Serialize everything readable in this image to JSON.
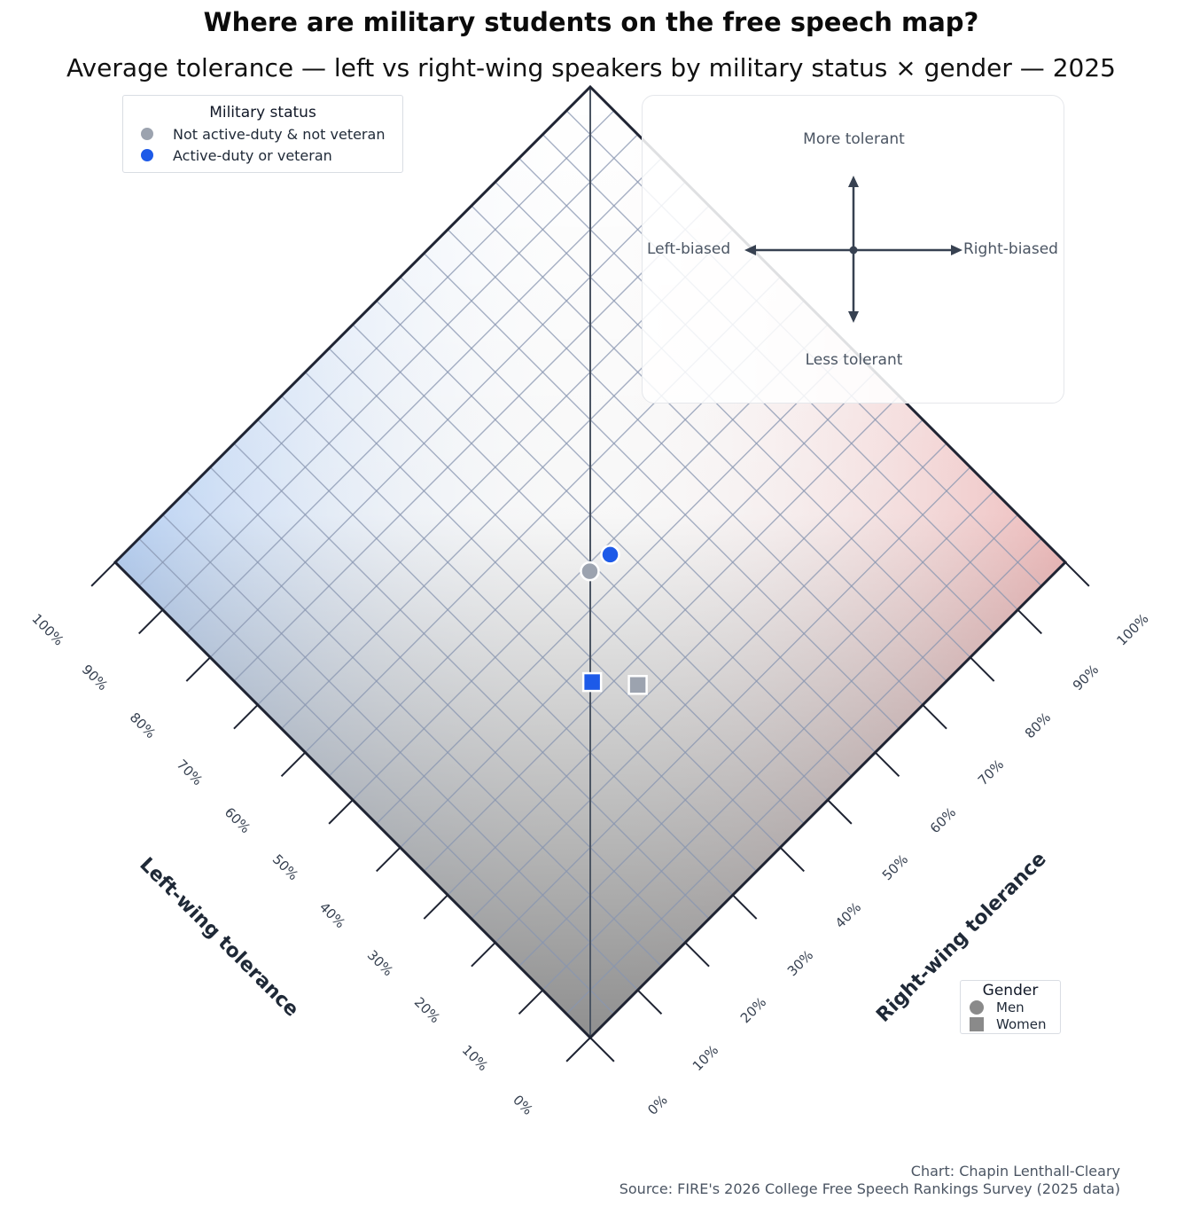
{
  "chart_data": {
    "type": "scatter",
    "title": "Where are military students on the free speech map?",
    "subtitle": "Average tolerance — left vs right-wing speakers by military status × gender — 2025",
    "x_axis": {
      "label": "Left-wing tolerance",
      "range": [
        0,
        100
      ],
      "unit": "%"
    },
    "y_axis": {
      "label": "Right-wing tolerance",
      "range": [
        0,
        100
      ],
      "unit": "%"
    },
    "ticks": [
      "0%",
      "10%",
      "20%",
      "30%",
      "40%",
      "50%",
      "60%",
      "70%",
      "80%",
      "90%",
      "100%"
    ],
    "grid": true,
    "series": [
      {
        "name": "Not active-duty & not veteran",
        "color": "#9ca3af",
        "points": [
          {
            "gender": "Men",
            "left_tolerance": 49.1,
            "right_tolerance": 49.0
          },
          {
            "gender": "Women",
            "left_tolerance": 32.1,
            "right_tolerance": 42.1
          }
        ]
      },
      {
        "name": "Active-duty or veteran",
        "color": "#1d5ae8",
        "points": [
          {
            "gender": "Men",
            "left_tolerance": 48.7,
            "right_tolerance": 52.9
          },
          {
            "gender": "Women",
            "left_tolerance": 37.2,
            "right_tolerance": 37.6
          }
        ]
      }
    ]
  },
  "legend": {
    "military_title": "Military status",
    "military_items": [
      {
        "label": "Not active-duty & not veteran",
        "color": "#9ca3af"
      },
      {
        "label": "Active-duty or veteran",
        "color": "#1d5ae8"
      }
    ],
    "gender_title": "Gender",
    "gender_items": [
      {
        "label": "Men",
        "shape": "circle"
      },
      {
        "label": "Women",
        "shape": "square"
      }
    ]
  },
  "guide": {
    "top": "More tolerant",
    "bottom": "Less tolerant",
    "left": "Left-biased",
    "right": "Right-biased"
  },
  "credits": {
    "author": "Chart: Chapin Lenthall-Cleary",
    "source": "Source: FIRE's 2026 College Free Speech Rankings Survey (2025 data)"
  }
}
